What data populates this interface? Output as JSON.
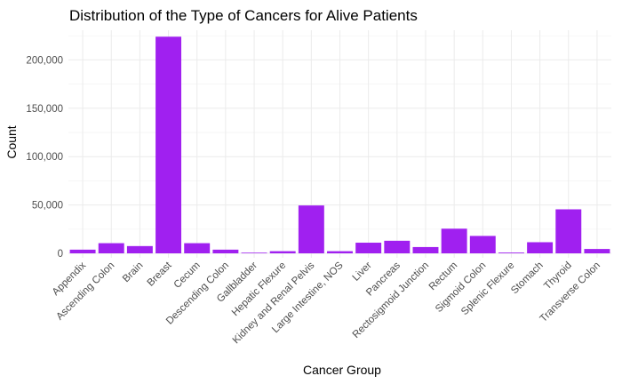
{
  "chart_data": {
    "type": "bar",
    "title": "Distribution of the Type of Cancers for Alive Patients",
    "xlabel": "Cancer Group",
    "ylabel": "Count",
    "categories": [
      "Appendix",
      "Ascending Colon",
      "Brain",
      "Breast",
      "Cecum",
      "Descending Colon",
      "Gallbladder",
      "Hepatic Flexure",
      "Kidney and Renal Pelvis",
      "Large Intestine, NOS",
      "Liver",
      "Pancreas",
      "Rectosigmoid Junction",
      "Rectum",
      "Sigmoid Colon",
      "Splenic Flexure",
      "Stomach",
      "Thyroid",
      "Transverse Colon"
    ],
    "values": [
      3800,
      10500,
      7500,
      224000,
      10500,
      3800,
      700,
      2200,
      49500,
      2200,
      11000,
      13000,
      6500,
      25500,
      18000,
      800,
      11500,
      45500,
      4500
    ],
    "yticks": [
      0,
      50000,
      100000,
      150000,
      200000
    ],
    "ytick_labels": [
      "0",
      "50,000",
      "100,000",
      "150,000",
      "200,000"
    ],
    "ylim": [
      0,
      235000
    ],
    "bar_color": "#a020f0",
    "grid": true,
    "legend": "none"
  }
}
